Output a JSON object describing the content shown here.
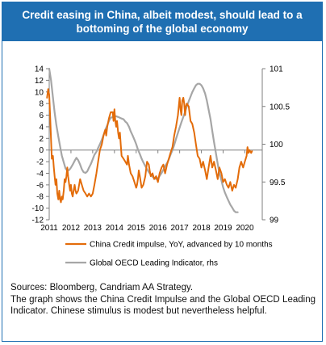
{
  "header": {
    "title_line1": "Credit easing in China, albeit modest, should lead to a",
    "title_line2": "bottoming of the global economy"
  },
  "footer": {
    "sources": "Sources: Bloomberg, Candriam AA Strategy.",
    "description": "The graph shows the China Credit Impulse and the Global OECD Leading Indicator. Chinese stimulus is modest but nevertheless helpful."
  },
  "chart_data": {
    "type": "line",
    "title": "Credit easing in China, albeit modest, should lead to a bottoming of the global economy",
    "x_tick_labels": [
      "2011",
      "2012",
      "2013",
      "2014",
      "2015",
      "2016",
      "2017",
      "2018",
      "2019",
      "2020"
    ],
    "xlim": [
      2011,
      2020.8
    ],
    "y_left": {
      "ylim": [
        -12,
        14
      ],
      "ticks": [
        -12,
        -10,
        -8,
        -6,
        -4,
        -2,
        0,
        2,
        4,
        6,
        8,
        10,
        12,
        14
      ]
    },
    "y_right": {
      "ylim": [
        99,
        101
      ],
      "ticks": [
        99,
        99.5,
        100,
        100.5,
        101
      ]
    },
    "legend_position": "bottom",
    "series": [
      {
        "name": "China Credit impulse, YoY, advanced by 10 months",
        "axis": "left",
        "color": "#e36c0a",
        "points": [
          [
            2010.9,
            9
          ],
          [
            2010.95,
            10.5
          ],
          [
            2011.0,
            9.5
          ],
          [
            2011.04,
            6
          ],
          [
            2011.08,
            2
          ],
          [
            2011.12,
            -1.5
          ],
          [
            2011.17,
            -1
          ],
          [
            2011.21,
            -3
          ],
          [
            2011.25,
            -4.5
          ],
          [
            2011.29,
            -6
          ],
          [
            2011.33,
            -5
          ],
          [
            2011.37,
            -7.5
          ],
          [
            2011.42,
            -8.5
          ],
          [
            2011.46,
            -7
          ],
          [
            2011.5,
            -8.5
          ],
          [
            2011.54,
            -9
          ],
          [
            2011.58,
            -8
          ],
          [
            2011.62,
            -8.5
          ],
          [
            2011.67,
            -7
          ],
          [
            2011.71,
            -5
          ],
          [
            2011.75,
            -5.5
          ],
          [
            2011.79,
            -4.5
          ],
          [
            2011.83,
            -3
          ],
          [
            2011.87,
            -4.5
          ],
          [
            2011.92,
            -6
          ],
          [
            2011.96,
            -7
          ],
          [
            2012.0,
            -6
          ],
          [
            2012.04,
            -7.5
          ],
          [
            2012.08,
            -8
          ],
          [
            2012.12,
            -7
          ],
          [
            2012.17,
            -6
          ],
          [
            2012.21,
            -7
          ],
          [
            2012.25,
            -7.5
          ],
          [
            2012.33,
            -7
          ],
          [
            2012.42,
            -5
          ],
          [
            2012.5,
            -6
          ],
          [
            2012.58,
            -7
          ],
          [
            2012.67,
            -7.5
          ],
          [
            2012.75,
            -8
          ],
          [
            2012.83,
            -7.5
          ],
          [
            2012.92,
            -8
          ],
          [
            2013.0,
            -7.5
          ],
          [
            2013.08,
            -6
          ],
          [
            2013.17,
            -4
          ],
          [
            2013.25,
            -2
          ],
          [
            2013.33,
            0
          ],
          [
            2013.42,
            1
          ],
          [
            2013.5,
            2.5
          ],
          [
            2013.58,
            3.5
          ],
          [
            2013.62,
            2.5
          ],
          [
            2013.67,
            4
          ],
          [
            2013.75,
            5.5
          ],
          [
            2013.83,
            6.5
          ],
          [
            2013.92,
            6.5
          ],
          [
            2013.96,
            5
          ],
          [
            2014.0,
            7
          ],
          [
            2014.04,
            5
          ],
          [
            2014.08,
            4
          ],
          [
            2014.12,
            5
          ],
          [
            2014.17,
            3
          ],
          [
            2014.21,
            2
          ],
          [
            2014.25,
            3
          ],
          [
            2014.29,
            1
          ],
          [
            2014.33,
            -1
          ],
          [
            2014.42,
            -1.5
          ],
          [
            2014.5,
            -2
          ],
          [
            2014.58,
            -2.5
          ],
          [
            2014.62,
            -1
          ],
          [
            2014.67,
            -2.5
          ],
          [
            2014.75,
            -4
          ],
          [
            2014.83,
            -4.5
          ],
          [
            2014.92,
            -5.5
          ],
          [
            2015.0,
            -6.5
          ],
          [
            2015.04,
            -6
          ],
          [
            2015.08,
            -5
          ],
          [
            2015.12,
            -3.5
          ],
          [
            2015.17,
            -4.5
          ],
          [
            2015.21,
            -5.5
          ],
          [
            2015.25,
            -6.5
          ],
          [
            2015.33,
            -6
          ],
          [
            2015.42,
            -4.5
          ],
          [
            2015.5,
            -2
          ],
          [
            2015.58,
            -2.5
          ],
          [
            2015.62,
            -3.5
          ],
          [
            2015.67,
            -4.5
          ],
          [
            2015.75,
            -4
          ],
          [
            2015.83,
            -5
          ],
          [
            2015.92,
            -4.5
          ],
          [
            2016.0,
            -5.5
          ],
          [
            2016.08,
            -4
          ],
          [
            2016.17,
            -3
          ],
          [
            2016.25,
            -2.5
          ],
          [
            2016.33,
            -4
          ],
          [
            2016.42,
            -2.5
          ],
          [
            2016.5,
            -1.5
          ],
          [
            2016.58,
            -0.5
          ],
          [
            2016.67,
            0.5
          ],
          [
            2016.75,
            2.5
          ],
          [
            2016.83,
            4
          ],
          [
            2016.92,
            6
          ],
          [
            2017.0,
            9
          ],
          [
            2017.04,
            7
          ],
          [
            2017.08,
            6
          ],
          [
            2017.12,
            8.5
          ],
          [
            2017.17,
            9
          ],
          [
            2017.21,
            8
          ],
          [
            2017.25,
            6
          ],
          [
            2017.29,
            7.5
          ],
          [
            2017.33,
            8
          ],
          [
            2017.42,
            7.5
          ],
          [
            2017.5,
            5
          ],
          [
            2017.58,
            4.5
          ],
          [
            2017.67,
            3
          ],
          [
            2017.75,
            1
          ],
          [
            2017.83,
            -1
          ],
          [
            2017.92,
            -1.5
          ],
          [
            2018.0,
            -3
          ],
          [
            2018.08,
            -2
          ],
          [
            2018.17,
            -3.5
          ],
          [
            2018.25,
            -5
          ],
          [
            2018.33,
            -3
          ],
          [
            2018.42,
            -1
          ],
          [
            2018.5,
            -3
          ],
          [
            2018.58,
            -2
          ],
          [
            2018.67,
            -3.5
          ],
          [
            2018.75,
            -5
          ],
          [
            2018.83,
            -3
          ],
          [
            2018.92,
            -4
          ],
          [
            2019.0,
            -5.5
          ],
          [
            2019.08,
            -5
          ],
          [
            2019.17,
            -6
          ],
          [
            2019.25,
            -6.5
          ],
          [
            2019.33,
            -5.5
          ],
          [
            2019.42,
            -7
          ],
          [
            2019.5,
            -6
          ],
          [
            2019.58,
            -6.5
          ],
          [
            2019.67,
            -5
          ],
          [
            2019.75,
            -3
          ],
          [
            2019.83,
            -2
          ],
          [
            2019.92,
            -3
          ],
          [
            2020.0,
            -2
          ],
          [
            2020.08,
            -1
          ],
          [
            2020.12,
            0.5
          ],
          [
            2020.17,
            -0.5
          ],
          [
            2020.21,
            0
          ],
          [
            2020.29,
            -0.5
          ],
          [
            2020.33,
            -0.2
          ]
        ]
      },
      {
        "name": "Global OECD Leading Indicator, rhs",
        "axis": "right",
        "color": "#a6a6a6",
        "points": [
          [
            2011.0,
            101.0
          ],
          [
            2011.08,
            100.85
          ],
          [
            2011.17,
            100.62
          ],
          [
            2011.25,
            100.42
          ],
          [
            2011.33,
            100.25
          ],
          [
            2011.42,
            100.1
          ],
          [
            2011.5,
            99.97
          ],
          [
            2011.58,
            99.85
          ],
          [
            2011.67,
            99.76
          ],
          [
            2011.75,
            99.68
          ],
          [
            2011.83,
            99.65
          ],
          [
            2011.92,
            99.66
          ],
          [
            2012.0,
            99.69
          ],
          [
            2012.08,
            99.73
          ],
          [
            2012.17,
            99.78
          ],
          [
            2012.25,
            99.82
          ],
          [
            2012.33,
            99.79
          ],
          [
            2012.42,
            99.73
          ],
          [
            2012.5,
            99.67
          ],
          [
            2012.58,
            99.63
          ],
          [
            2012.67,
            99.62
          ],
          [
            2012.75,
            99.64
          ],
          [
            2012.83,
            99.69
          ],
          [
            2012.92,
            99.74
          ],
          [
            2013.0,
            99.8
          ],
          [
            2013.08,
            99.86
          ],
          [
            2013.17,
            99.9
          ],
          [
            2013.25,
            99.95
          ],
          [
            2013.33,
            100.0
          ],
          [
            2013.42,
            100.06
          ],
          [
            2013.5,
            100.12
          ],
          [
            2013.58,
            100.19
          ],
          [
            2013.67,
            100.25
          ],
          [
            2013.75,
            100.31
          ],
          [
            2013.83,
            100.35
          ],
          [
            2013.92,
            100.36
          ],
          [
            2014.0,
            100.37
          ],
          [
            2014.08,
            100.37
          ],
          [
            2014.17,
            100.36
          ],
          [
            2014.25,
            100.35
          ],
          [
            2014.33,
            100.34
          ],
          [
            2014.42,
            100.33
          ],
          [
            2014.5,
            100.3
          ],
          [
            2014.58,
            100.28
          ],
          [
            2014.67,
            100.23
          ],
          [
            2014.75,
            100.17
          ],
          [
            2014.83,
            100.12
          ],
          [
            2014.92,
            100.06
          ],
          [
            2015.0,
            100.0
          ],
          [
            2015.08,
            99.93
          ],
          [
            2015.17,
            99.87
          ],
          [
            2015.25,
            99.81
          ],
          [
            2015.33,
            99.76
          ],
          [
            2015.42,
            99.71
          ],
          [
            2015.5,
            99.67
          ],
          [
            2015.58,
            99.63
          ],
          [
            2015.67,
            99.6
          ],
          [
            2015.75,
            99.57
          ],
          [
            2015.83,
            99.55
          ],
          [
            2015.92,
            99.54
          ],
          [
            2016.0,
            99.55
          ],
          [
            2016.08,
            99.58
          ],
          [
            2016.17,
            99.62
          ],
          [
            2016.25,
            99.66
          ],
          [
            2016.33,
            99.71
          ],
          [
            2016.42,
            99.75
          ],
          [
            2016.5,
            99.8
          ],
          [
            2016.58,
            99.86
          ],
          [
            2016.67,
            99.92
          ],
          [
            2016.75,
            99.99
          ],
          [
            2016.83,
            100.07
          ],
          [
            2016.92,
            100.15
          ],
          [
            2017.0,
            100.22
          ],
          [
            2017.08,
            100.29
          ],
          [
            2017.17,
            100.36
          ],
          [
            2017.25,
            100.43
          ],
          [
            2017.33,
            100.5
          ],
          [
            2017.42,
            100.57
          ],
          [
            2017.5,
            100.63
          ],
          [
            2017.58,
            100.69
          ],
          [
            2017.67,
            100.74
          ],
          [
            2017.75,
            100.78
          ],
          [
            2017.83,
            100.8
          ],
          [
            2017.92,
            100.8
          ],
          [
            2018.0,
            100.78
          ],
          [
            2018.08,
            100.74
          ],
          [
            2018.17,
            100.67
          ],
          [
            2018.25,
            100.58
          ],
          [
            2018.33,
            100.46
          ],
          [
            2018.42,
            100.33
          ],
          [
            2018.5,
            100.18
          ],
          [
            2018.58,
            100.03
          ],
          [
            2018.67,
            99.88
          ],
          [
            2018.75,
            99.74
          ],
          [
            2018.83,
            99.62
          ],
          [
            2018.92,
            99.52
          ],
          [
            2019.0,
            99.43
          ],
          [
            2019.08,
            99.36
          ],
          [
            2019.17,
            99.3
          ],
          [
            2019.25,
            99.25
          ],
          [
            2019.33,
            99.2
          ],
          [
            2019.42,
            99.16
          ],
          [
            2019.5,
            99.12
          ],
          [
            2019.58,
            99.1
          ],
          [
            2019.67,
            99.1
          ]
        ]
      }
    ]
  }
}
